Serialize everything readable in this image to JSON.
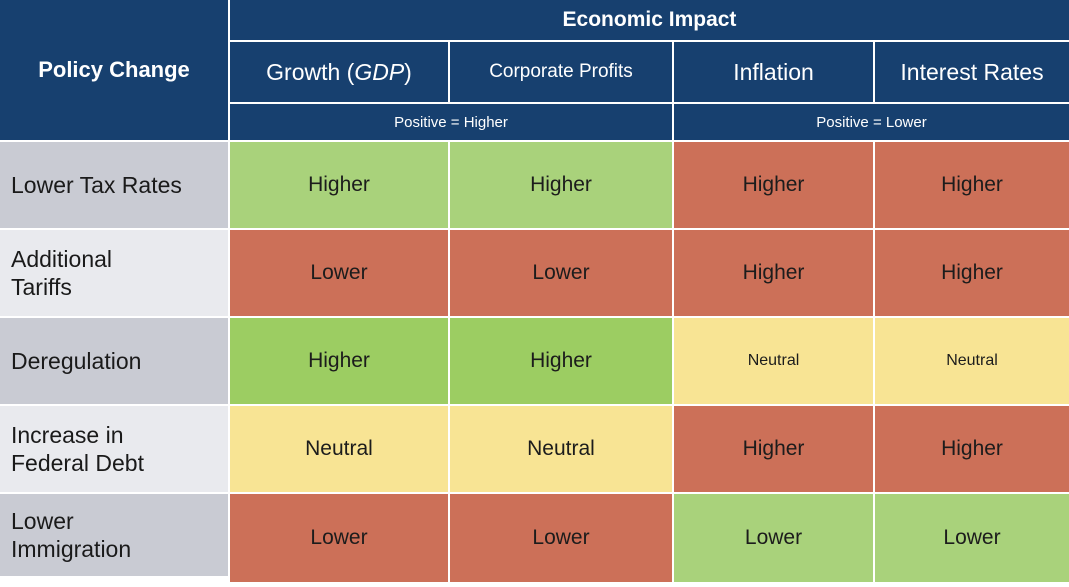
{
  "colors": {
    "header_blue": "#17406f",
    "green": "#a9d27b",
    "green_alt": "#9ccd62",
    "red": "#cc7058",
    "yellow": "#f8e494",
    "label_gray_dark": "#c9cbd3",
    "label_gray_light": "#e9eaee"
  },
  "header": {
    "policy": "Policy Change",
    "group": "Economic Impact",
    "growth": {
      "pre": "Growth (",
      "em": "GDP",
      "post": ")"
    },
    "corporate": "Corporate Profits",
    "inflation": "Inflation",
    "interest": "Interest Rates",
    "positive_higher": "Positive = Higher",
    "positive_lower": "Positive = Lower"
  },
  "rows": [
    {
      "label": "Lower Tax Rates",
      "shade": "dark",
      "cells": [
        {
          "text": "Higher",
          "tone": "green"
        },
        {
          "text": "Higher",
          "tone": "green"
        },
        {
          "text": "Higher",
          "tone": "red"
        },
        {
          "text": "Higher",
          "tone": "red"
        }
      ]
    },
    {
      "label": "Additional\nTariffs",
      "shade": "light",
      "cells": [
        {
          "text": "Lower",
          "tone": "red"
        },
        {
          "text": "Lower",
          "tone": "red"
        },
        {
          "text": "Higher",
          "tone": "red"
        },
        {
          "text": "Higher",
          "tone": "red"
        }
      ]
    },
    {
      "label": "Deregulation",
      "shade": "dark",
      "cells": [
        {
          "text": "Higher",
          "tone": "green_alt"
        },
        {
          "text": "Higher",
          "tone": "green_alt"
        },
        {
          "text": "Neutral",
          "tone": "yellow",
          "small": true
        },
        {
          "text": "Neutral",
          "tone": "yellow",
          "small": true
        }
      ]
    },
    {
      "label": "Increase in\nFederal Debt",
      "shade": "light",
      "cells": [
        {
          "text": "Neutral",
          "tone": "yellow"
        },
        {
          "text": "Neutral",
          "tone": "yellow"
        },
        {
          "text": "Higher",
          "tone": "red"
        },
        {
          "text": "Higher",
          "tone": "red"
        }
      ]
    },
    {
      "label": "Lower\nImmigration",
      "shade": "dark",
      "cells": [
        {
          "text": "Lower",
          "tone": "red"
        },
        {
          "text": "Lower",
          "tone": "red"
        },
        {
          "text": "Lower",
          "tone": "green"
        },
        {
          "text": "Lower",
          "tone": "green"
        }
      ]
    }
  ],
  "chart_data": {
    "type": "table",
    "title": "Economic Impact",
    "row_header": "Policy Change",
    "columns": [
      "Growth (GDP)",
      "Corporate Profits",
      "Inflation",
      "Interest Rates"
    ],
    "column_conventions": {
      "growth_and_corporate_profits": "Positive = Higher",
      "inflation_and_interest_rates": "Positive = Lower"
    },
    "rows": [
      {
        "policy": "Lower Tax Rates",
        "values": [
          "Higher",
          "Higher",
          "Higher",
          "Higher"
        ],
        "sentiment": [
          "positive",
          "positive",
          "negative",
          "negative"
        ]
      },
      {
        "policy": "Additional Tariffs",
        "values": [
          "Lower",
          "Lower",
          "Higher",
          "Higher"
        ],
        "sentiment": [
          "negative",
          "negative",
          "negative",
          "negative"
        ]
      },
      {
        "policy": "Deregulation",
        "values": [
          "Higher",
          "Higher",
          "Neutral",
          "Neutral"
        ],
        "sentiment": [
          "positive",
          "positive",
          "neutral",
          "neutral"
        ]
      },
      {
        "policy": "Increase in Federal Debt",
        "values": [
          "Neutral",
          "Neutral",
          "Higher",
          "Higher"
        ],
        "sentiment": [
          "neutral",
          "neutral",
          "negative",
          "negative"
        ]
      },
      {
        "policy": "Lower Immigration",
        "values": [
          "Lower",
          "Lower",
          "Lower",
          "Lower"
        ],
        "sentiment": [
          "negative",
          "negative",
          "positive",
          "positive"
        ]
      }
    ],
    "legend_colors": {
      "positive": "#a9d27b",
      "negative": "#cc7058",
      "neutral": "#f8e494"
    }
  }
}
